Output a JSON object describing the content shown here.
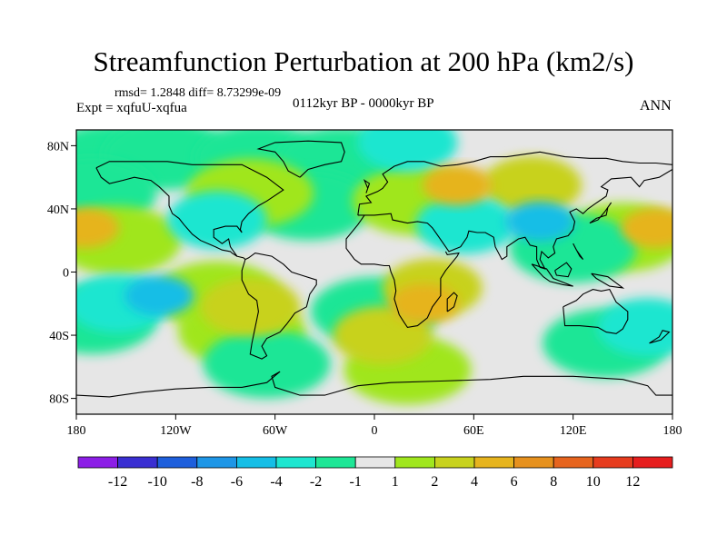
{
  "chart_data": {
    "type": "heatmap",
    "title": "Streamfunction Perturbation at 200 hPa (km2/s)",
    "stats_label": "rmsd= 1.2848 diff= 8.73299e-09",
    "experiment_label": "Expt = xqfuU-xqfua",
    "period_label": "0112kyr BP - 0000kyr BP",
    "season_label": "ANN",
    "x_range": [
      -180,
      180
    ],
    "y_range": [
      -90,
      90
    ],
    "x_ticks": [
      {
        "value": -180,
        "label": "180"
      },
      {
        "value": -120,
        "label": "120W"
      },
      {
        "value": -60,
        "label": "60W"
      },
      {
        "value": 0,
        "label": "0"
      },
      {
        "value": 60,
        "label": "60E"
      },
      {
        "value": 120,
        "label": "120E"
      },
      {
        "value": 180,
        "label": "180"
      }
    ],
    "y_ticks": [
      {
        "value": 80,
        "label": "80N"
      },
      {
        "value": 40,
        "label": "40N"
      },
      {
        "value": 0,
        "label": "0"
      },
      {
        "value": -40,
        "label": "40S"
      },
      {
        "value": -80,
        "label": "80S"
      }
    ],
    "colorbar": {
      "colors": [
        "#8c1ee6",
        "#3a2fd2",
        "#1e5fdc",
        "#1e96e6",
        "#15bee6",
        "#1ee6d0",
        "#1ee696",
        "#e6e6e6",
        "#a0e61e",
        "#c8d21e",
        "#e6b41e",
        "#e6911e",
        "#e6641e",
        "#e63c1e",
        "#e61e1e"
      ],
      "labels": [
        "-12",
        "-10",
        "-8",
        "-6",
        "-4",
        "-2",
        "-1",
        "1",
        "2",
        "4",
        "6",
        "8",
        "10",
        "12"
      ]
    },
    "anomalies": [
      {
        "lon": -160,
        "lat": 72,
        "level": -1
      },
      {
        "lon": -125,
        "lat": 74,
        "level": -1
      },
      {
        "lon": -70,
        "lat": 72,
        "level": -1
      },
      {
        "lon": -20,
        "lat": 70,
        "level": -1
      },
      {
        "lon": 20,
        "lat": 82,
        "level": -2
      },
      {
        "lon": -40,
        "lat": 42,
        "level": -1
      },
      {
        "lon": -95,
        "lat": 33,
        "level": -2
      },
      {
        "lon": -170,
        "lat": 50,
        "level": -1
      },
      {
        "lon": -75,
        "lat": 50,
        "level": 1
      },
      {
        "lon": -175,
        "lat": 28,
        "level": 4
      },
      {
        "lon": -155,
        "lat": 20,
        "level": 1
      },
      {
        "lon": 50,
        "lat": 55,
        "level": 4
      },
      {
        "lon": 95,
        "lat": 55,
        "level": 2
      },
      {
        "lon": 25,
        "lat": 45,
        "level": 1
      },
      {
        "lon": 170,
        "lat": 28,
        "level": 4
      },
      {
        "lon": 150,
        "lat": 22,
        "level": 1
      },
      {
        "lon": 55,
        "lat": 30,
        "level": -2
      },
      {
        "lon": 100,
        "lat": 32,
        "level": -4
      },
      {
        "lon": 120,
        "lat": 15,
        "level": -1
      },
      {
        "lon": -130,
        "lat": -15,
        "level": -4
      },
      {
        "lon": -155,
        "lat": -20,
        "level": -2
      },
      {
        "lon": -95,
        "lat": -15,
        "level": 1
      },
      {
        "lon": -75,
        "lat": -22,
        "level": 2
      },
      {
        "lon": -80,
        "lat": -38,
        "level": 1
      },
      {
        "lon": -65,
        "lat": -58,
        "level": -1
      },
      {
        "lon": 35,
        "lat": -10,
        "level": 2
      },
      {
        "lon": 30,
        "lat": -20,
        "level": 4
      },
      {
        "lon": 5,
        "lat": -40,
        "level": 2
      },
      {
        "lon": 20,
        "lat": -62,
        "level": 1
      },
      {
        "lon": 0,
        "lat": -25,
        "level": -1
      },
      {
        "lon": 165,
        "lat": -35,
        "level": -2
      },
      {
        "lon": 140,
        "lat": -45,
        "level": -1
      },
      {
        "lon": -170,
        "lat": -30,
        "level": -1
      }
    ]
  }
}
